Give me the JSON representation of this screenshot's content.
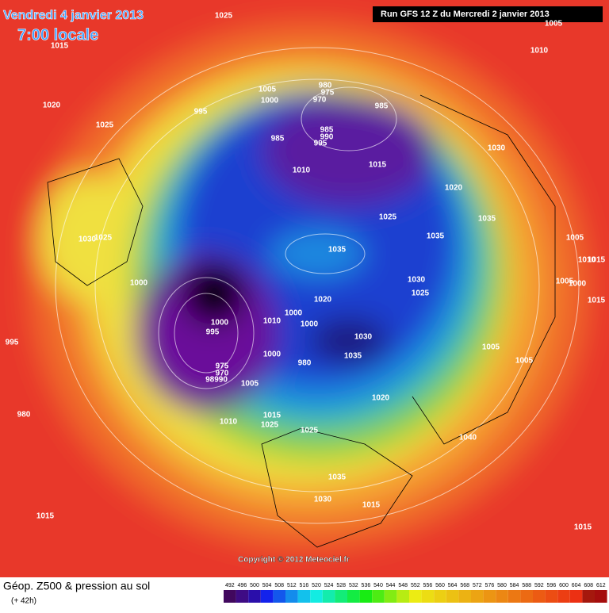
{
  "header": {
    "date": "Vendredi 4 janvier 2013",
    "time": "7:00 locale",
    "run": "Run GFS 12 Z du Mercredi 2 janvier 2013"
  },
  "copyright": "Copyright © 2012 Meteociel.fr",
  "footer": {
    "title": "Géop. Z500 & pression au sol",
    "lead": "(+ 42h)"
  },
  "scale": {
    "labels": [
      492,
      496,
      500,
      504,
      508,
      512,
      516,
      520,
      524,
      528,
      532,
      536,
      540,
      544,
      548,
      552,
      556,
      560,
      564,
      568,
      572,
      576,
      580,
      584,
      588,
      592,
      596,
      600,
      604,
      608,
      612
    ]
  },
  "isobar_labels": [
    "1025",
    "1015",
    "1010",
    "1005",
    "1020",
    "1025",
    "995",
    "1005",
    "1000",
    "980",
    "975",
    "970",
    "985",
    "985",
    "985",
    "990",
    "995",
    "1010",
    "1015",
    "1020",
    "1030",
    "1025",
    "1035",
    "1035",
    "1030",
    "1025",
    "1035",
    "1005",
    "1010",
    "1015",
    "1000",
    "1005",
    "1000",
    "1030",
    "1025",
    "1015",
    "1020",
    "1000",
    "1010",
    "1000",
    "1000",
    "995",
    "995",
    "1030",
    "1005",
    "1000",
    "1035",
    "1005",
    "980",
    "975",
    "970",
    "98990",
    "1005",
    "1020",
    "980",
    "1010",
    "1015",
    "1025",
    "1025",
    "1040",
    "1035",
    "1030",
    "1015",
    "1015",
    "1015"
  ]
}
